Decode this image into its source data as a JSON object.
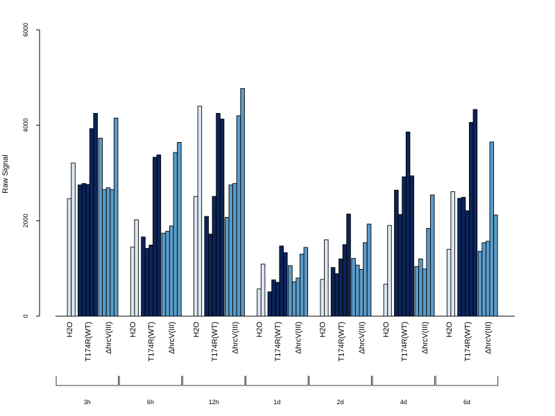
{
  "chart_data": {
    "type": "bar",
    "title": "",
    "xlabel": "",
    "ylabel": "Raw Signal",
    "ylim": [
      0,
      6000
    ],
    "yticks": [
      0,
      2000,
      4000,
      6000
    ],
    "grid": false,
    "colors": {
      "H2O": "#dce6f2",
      "T174R(WT)": "#0c2459",
      "ΔhrcV(III)": "#5b9bc8"
    },
    "series_labels": [
      "H2O",
      "T174R(WT)",
      "ΔhrcV(III)"
    ],
    "groups": [
      {
        "label": "3h",
        "H2O": [
          0,
          2460,
          3210
        ],
        "T174R(WT)": [
          2750,
          2780,
          2760,
          3930,
          4250
        ],
        "ΔhrcV(III)": [
          3730,
          2650,
          2690,
          2650,
          4150
        ]
      },
      {
        "label": "6h",
        "H2O": [
          0,
          1450,
          2020
        ],
        "T174R(WT)": [
          1660,
          1420,
          1490,
          3330,
          3380
        ],
        "ΔhrcV(III)": [
          1740,
          1780,
          1890,
          3430,
          3640
        ]
      },
      {
        "label": "12h",
        "H2O": [
          0,
          2510,
          4400
        ],
        "T174R(WT)": [
          2090,
          1720,
          2510,
          4250,
          4130
        ],
        "ΔhrcV(III)": [
          2070,
          2750,
          2780,
          4200,
          4770
        ]
      },
      {
        "label": "1d",
        "H2O": [
          0,
          570,
          1090
        ],
        "T174R(WT)": [
          510,
          760,
          710,
          1470,
          1330
        ],
        "ΔhrcV(III)": [
          1060,
          720,
          800,
          1300,
          1440
        ]
      },
      {
        "label": "2d",
        "H2O": [
          0,
          770,
          1600
        ],
        "T174R(WT)": [
          1020,
          890,
          1200,
          1500,
          2140
        ],
        "ΔhrcV(III)": [
          1210,
          1070,
          980,
          1540,
          1930
        ]
      },
      {
        "label": "4d",
        "H2O": [
          0,
          670,
          1900
        ],
        "T174R(WT)": [
          2640,
          2130,
          2920,
          3860,
          2940
        ],
        "ΔhrcV(III)": [
          1040,
          1200,
          990,
          1840,
          2540
        ]
      },
      {
        "label": "6d",
        "H2O": [
          0,
          1400,
          2610
        ],
        "T174R(WT)": [
          2470,
          2490,
          2210,
          4060,
          4330
        ],
        "ΔhrcV(III)": [
          1360,
          1540,
          1570,
          3650,
          2120
        ]
      }
    ]
  }
}
